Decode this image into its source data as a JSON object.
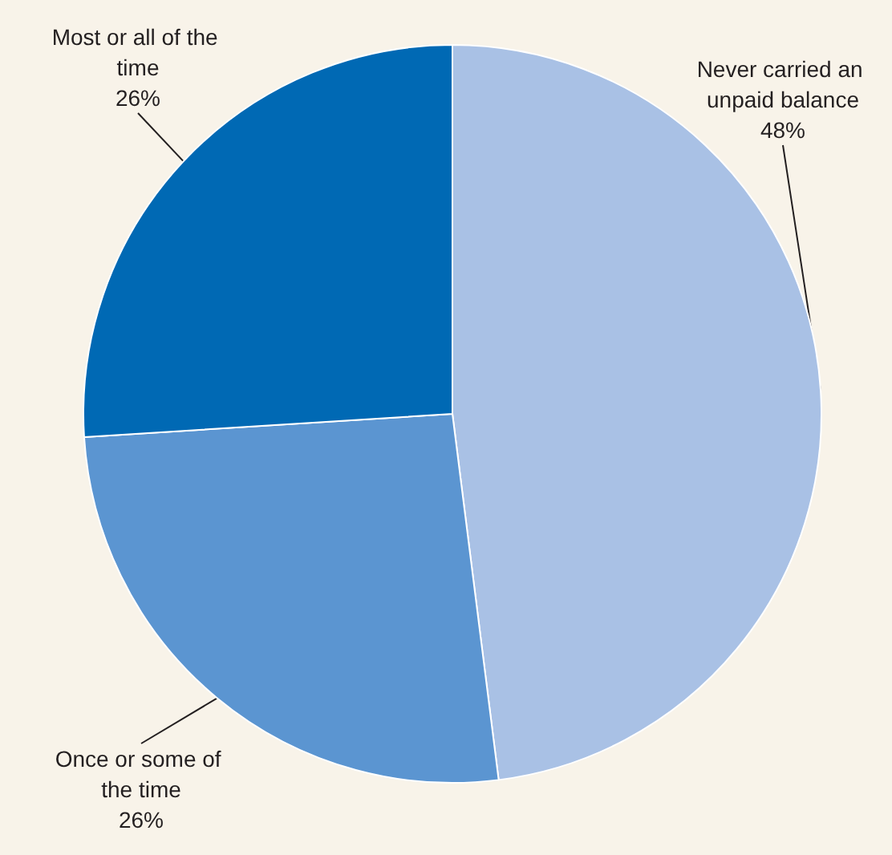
{
  "chart_data": {
    "type": "pie",
    "categories": [
      "Never carried an unpaid balance",
      "Once or some of the time",
      "Most or all of the time"
    ],
    "values": [
      48,
      26,
      26
    ],
    "colors": [
      "#a9c1e5",
      "#5b95d1",
      "#0069b4"
    ],
    "value_labels": [
      "48%",
      "26%",
      "26%"
    ]
  }
}
